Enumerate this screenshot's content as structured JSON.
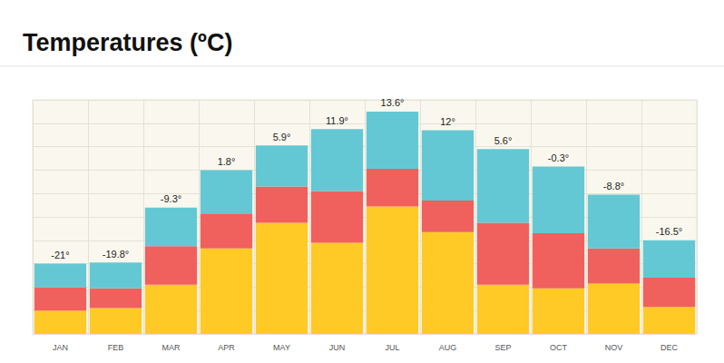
{
  "chart_data": {
    "type": "bar",
    "title": "Temperatures (ºC)",
    "categories": [
      "JAN",
      "FEB",
      "MAR",
      "APR",
      "MAY",
      "JUN",
      "JUL",
      "AUG",
      "SEP",
      "OCT",
      "NOV",
      "DEC"
    ],
    "series": [
      {
        "color": "#ffc926",
        "values": [
          1.0,
          1.1,
          2.1,
          3.65,
          4.75,
          3.9,
          5.45,
          4.35,
          2.1,
          1.95,
          2.15,
          1.15
        ]
      },
      {
        "color": "#f0605d",
        "values": [
          1.0,
          0.85,
          1.65,
          1.5,
          1.55,
          2.2,
          1.6,
          1.35,
          2.65,
          2.35,
          1.5,
          1.25
        ]
      },
      {
        "color": "#64c8d4",
        "values": [
          1.0,
          1.1,
          1.65,
          1.85,
          1.75,
          2.65,
          2.45,
          3.0,
          3.15,
          2.85,
          2.3,
          1.6
        ]
      }
    ],
    "annotations": [
      "-21°",
      "-19.8°",
      "-9.3°",
      "1.8°",
      "5.9°",
      "11.9°",
      "13.6°",
      "12°",
      "5.6°",
      "-0.3°",
      "-8.8°",
      "-16.5°"
    ],
    "stacked": true,
    "ylim": [
      0,
      10
    ],
    "yticks": [
      0,
      1,
      2,
      3,
      4,
      5,
      6,
      7,
      8,
      9,
      10
    ],
    "grid": true,
    "tick_labels": "x"
  }
}
